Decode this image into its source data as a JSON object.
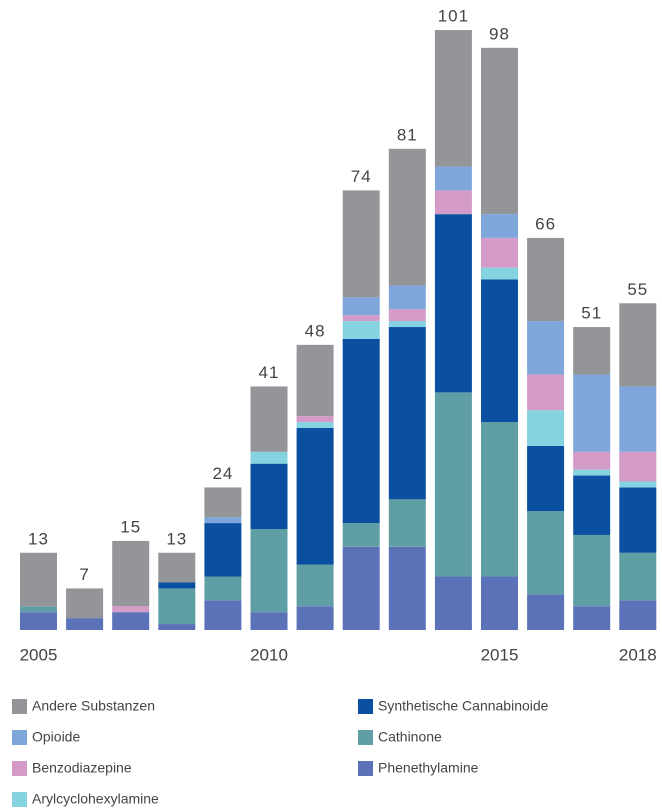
{
  "chart_data": {
    "type": "stacked-bar",
    "categories": [
      "2005",
      null,
      null,
      null,
      null,
      "2010",
      null,
      null,
      null,
      null,
      "2015",
      null,
      null,
      "2018"
    ],
    "ylim": [
      0,
      101
    ],
    "series": [
      {
        "name": "Phenethylamine",
        "color": "#5b72b8",
        "values": [
          3,
          2,
          3,
          1,
          5,
          3,
          4,
          14,
          14,
          9,
          9,
          6,
          4,
          5
        ]
      },
      {
        "name": "Cathinone",
        "color": "#5f9ea5",
        "values": [
          1,
          0,
          0,
          6,
          4,
          14,
          7,
          4,
          8,
          31,
          26,
          14,
          12,
          8
        ]
      },
      {
        "name": "Synthetische Cannabinoide",
        "color": "#0a4fa0",
        "values": [
          0,
          0,
          0,
          1,
          9,
          11,
          23,
          31,
          29,
          30,
          24,
          11,
          10,
          11
        ]
      },
      {
        "name": "Arylcyclohexylamine",
        "color": "#85d3e0",
        "values": [
          0,
          0,
          0,
          0,
          0,
          2,
          1,
          3,
          1,
          0,
          2,
          6,
          1,
          1
        ]
      },
      {
        "name": "Benzodiazepine",
        "color": "#d49ac8",
        "values": [
          0,
          0,
          1,
          0,
          0,
          0,
          1,
          1,
          2,
          4,
          5,
          6,
          3,
          5
        ]
      },
      {
        "name": "Opioide",
        "color": "#7ea6db",
        "values": [
          0,
          0,
          0,
          0,
          1,
          0,
          0,
          3,
          4,
          4,
          4,
          9,
          13,
          11
        ]
      },
      {
        "name": "Andere Substanzen",
        "color": "#939598",
        "values": [
          9,
          5,
          11,
          5,
          5,
          11,
          12,
          18,
          23,
          23,
          28,
          14,
          8,
          14
        ]
      }
    ],
    "totals": [
      13,
      7,
      15,
      13,
      24,
      41,
      48,
      74,
      81,
      101,
      98,
      66,
      51,
      55
    ]
  }
}
